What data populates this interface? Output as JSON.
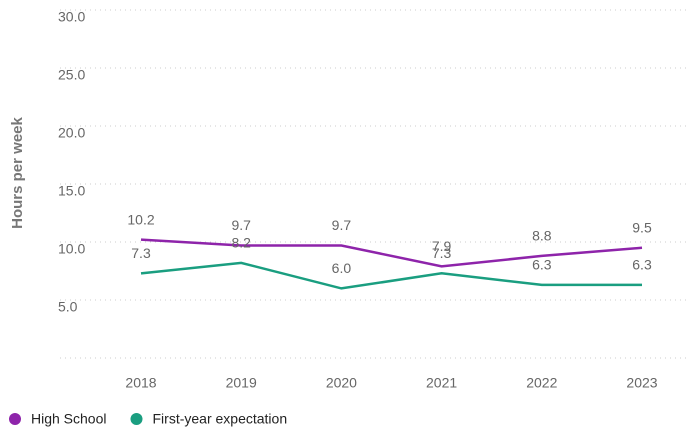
{
  "chart_data": {
    "type": "line",
    "y_label": "Hours per week",
    "categories": [
      "2018",
      "2019",
      "2020",
      "2021",
      "2022",
      "2023"
    ],
    "series": [
      {
        "name": "High School",
        "color": "#8e24aa",
        "values": [
          10.2,
          9.7,
          9.7,
          7.9,
          8.8,
          9.5
        ],
        "value_labels": [
          "10.2",
          "9.7",
          "9.7",
          "7.9",
          "8.8",
          "9.5"
        ]
      },
      {
        "name": "First-year expectation",
        "color": "#1a9e80",
        "values": [
          7.3,
          8.2,
          6.0,
          7.3,
          6.3,
          6.3
        ],
        "value_labels": [
          "7.3",
          "8.2",
          "6.0",
          "7.3",
          "6.3",
          "6.3"
        ]
      }
    ],
    "ylim": [
      0,
      30
    ],
    "yticks": [
      {
        "value": 5,
        "label": "5.0"
      },
      {
        "value": 10,
        "label": "10.0"
      },
      {
        "value": 15,
        "label": "15.0"
      },
      {
        "value": 20,
        "label": "20.0"
      },
      {
        "value": 25,
        "label": "25.0"
      },
      {
        "value": 30,
        "label": "30.0"
      }
    ],
    "grid": true,
    "legend": "bottom-left"
  }
}
